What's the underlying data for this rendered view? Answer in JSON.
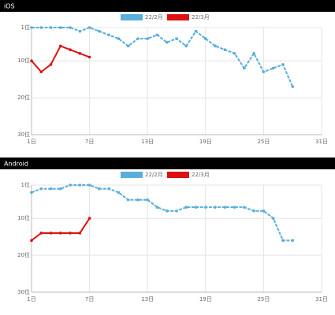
{
  "chart_data": [
    {
      "type": "line",
      "title": "iOS",
      "x": [
        1,
        2,
        3,
        4,
        5,
        6,
        7,
        8,
        9,
        10,
        11,
        12,
        13,
        14,
        15,
        16,
        17,
        18,
        19,
        20,
        21,
        22,
        23,
        24,
        25,
        26,
        27,
        28
      ],
      "series": [
        {
          "name": "22/2月",
          "color": "#5aaedc",
          "values": [
            1,
            1,
            1,
            1,
            1,
            2,
            1,
            2,
            3,
            4,
            6,
            4,
            4,
            3,
            5,
            4,
            6,
            2,
            4,
            6,
            7,
            8,
            12,
            8,
            13,
            12,
            11,
            17
          ]
        },
        {
          "name": "22/3月",
          "color": "#dd1111",
          "values": [
            10,
            13,
            11,
            6,
            7,
            8,
            9,
            null,
            null,
            null,
            null,
            null,
            null,
            null,
            null,
            null,
            null,
            null,
            null,
            null,
            null,
            null,
            null,
            null,
            null,
            null,
            null,
            null
          ]
        }
      ],
      "xlim": [
        1,
        31
      ],
      "xticks": [
        {
          "value": 1,
          "label": "1日"
        },
        {
          "value": 7,
          "label": "7日"
        },
        {
          "value": 13,
          "label": "13日"
        },
        {
          "value": 19,
          "label": "19日"
        },
        {
          "value": 25,
          "label": "25日"
        },
        {
          "value": 31,
          "label": "31日"
        }
      ],
      "ylim": [
        30,
        1
      ],
      "yticks": [
        {
          "value": 1,
          "label": "1位"
        },
        {
          "value": 10,
          "label": "10位"
        },
        {
          "value": 20,
          "label": "20位"
        },
        {
          "value": 30,
          "label": "30位"
        }
      ],
      "grid": true
    },
    {
      "type": "line",
      "title": "Android",
      "x": [
        1,
        2,
        3,
        4,
        5,
        6,
        7,
        8,
        9,
        10,
        11,
        12,
        13,
        14,
        15,
        16,
        17,
        18,
        19,
        20,
        21,
        22,
        23,
        24,
        25,
        26,
        27,
        28
      ],
      "series": [
        {
          "name": "22/2月",
          "color": "#5aaedc",
          "values": [
            3,
            2,
            2,
            2,
            1,
            1,
            1,
            2,
            2,
            3,
            5,
            5,
            5,
            7,
            8,
            8,
            7,
            7,
            7,
            7,
            7,
            7,
            7,
            8,
            8,
            10,
            16,
            16
          ]
        },
        {
          "name": "22/3月",
          "color": "#dd1111",
          "values": [
            16,
            14,
            14,
            14,
            14,
            14,
            10,
            null,
            null,
            null,
            null,
            null,
            null,
            null,
            null,
            null,
            null,
            null,
            null,
            null,
            null,
            null,
            null,
            null,
            null,
            null,
            null,
            null
          ]
        }
      ],
      "xlim": [
        1,
        31
      ],
      "xticks": [
        {
          "value": 1,
          "label": "1日"
        },
        {
          "value": 7,
          "label": "7日"
        },
        {
          "value": 13,
          "label": "13日"
        },
        {
          "value": 19,
          "label": "19日"
        },
        {
          "value": 25,
          "label": "25日"
        },
        {
          "value": 31,
          "label": "31日"
        }
      ],
      "ylim": [
        30,
        1
      ],
      "yticks": [
        {
          "value": 1,
          "label": "1位"
        },
        {
          "value": 10,
          "label": "10位"
        },
        {
          "value": 20,
          "label": "20位"
        },
        {
          "value": 30,
          "label": "30位"
        }
      ],
      "grid": true
    }
  ]
}
